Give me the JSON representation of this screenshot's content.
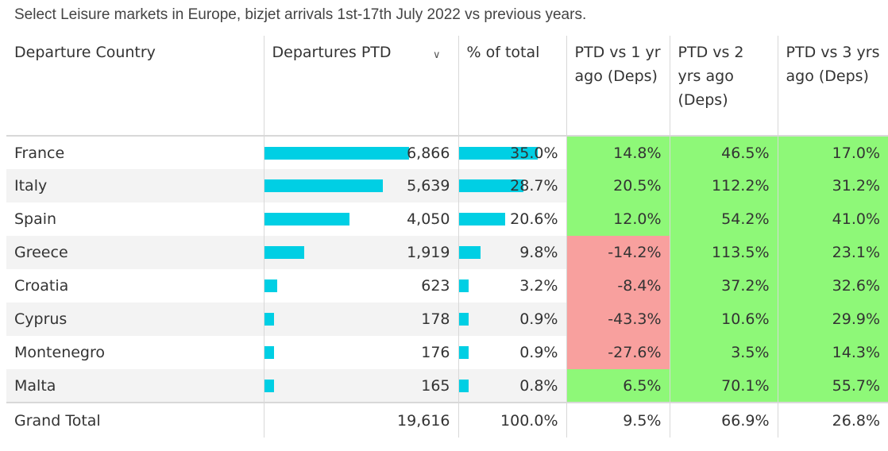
{
  "caption": "Select Leisure markets in Europe, bizjet arrivals 1st-17th July 2022 vs previous years.",
  "headers": {
    "country": "Departure Country",
    "departures": "Departures PTD",
    "pct_total": "% of total",
    "vs1": "PTD vs 1 yr ago (Deps)",
    "vs2": "PTD vs 2 yrs ago (Deps)",
    "vs3": "PTD vs 3 yrs ago (Deps)"
  },
  "colors": {
    "bar": "#00cfe4",
    "positive": "#8ef878",
    "negative": "#f8a09e"
  },
  "chart_data": {
    "type": "table",
    "columns": [
      "Departure Country",
      "Departures PTD",
      "% of total",
      "PTD vs 1 yr ago (Deps)",
      "PTD vs 2 yrs ago (Deps)",
      "PTD vs 3 yrs ago (Deps)"
    ],
    "rows": [
      {
        "country": "France",
        "departures": "6,866",
        "pct": "35.0%",
        "vs1": "14.8%",
        "vs2": "46.5%",
        "vs3": "17.0%",
        "dep_value": 6866,
        "pct_value": 35.0,
        "vs1_value": 14.8
      },
      {
        "country": "Italy",
        "departures": "5,639",
        "pct": "28.7%",
        "vs1": "20.5%",
        "vs2": "112.2%",
        "vs3": "31.2%",
        "dep_value": 5639,
        "pct_value": 28.7,
        "vs1_value": 20.5
      },
      {
        "country": "Spain",
        "departures": "4,050",
        "pct": "20.6%",
        "vs1": "12.0%",
        "vs2": "54.2%",
        "vs3": "41.0%",
        "dep_value": 4050,
        "pct_value": 20.6,
        "vs1_value": 12.0
      },
      {
        "country": "Greece",
        "departures": "1,919",
        "pct": "9.8%",
        "vs1": "-14.2%",
        "vs2": "113.5%",
        "vs3": "23.1%",
        "dep_value": 1919,
        "pct_value": 9.8,
        "vs1_value": -14.2
      },
      {
        "country": "Croatia",
        "departures": "623",
        "pct": "3.2%",
        "vs1": "-8.4%",
        "vs2": "37.2%",
        "vs3": "32.6%",
        "dep_value": 623,
        "pct_value": 3.2,
        "vs1_value": -8.4
      },
      {
        "country": "Cyprus",
        "departures": "178",
        "pct": "0.9%",
        "vs1": "-43.3%",
        "vs2": "10.6%",
        "vs3": "29.9%",
        "dep_value": 178,
        "pct_value": 0.9,
        "vs1_value": -43.3
      },
      {
        "country": "Montenegro",
        "departures": "176",
        "pct": "0.9%",
        "vs1": "-27.6%",
        "vs2": "3.5%",
        "vs3": "14.3%",
        "dep_value": 176,
        "pct_value": 0.9,
        "vs1_value": -27.6
      },
      {
        "country": "Malta",
        "departures": "165",
        "pct": "0.8%",
        "vs1": "6.5%",
        "vs2": "70.1%",
        "vs3": "55.7%",
        "dep_value": 165,
        "pct_value": 0.8,
        "vs1_value": 6.5
      }
    ],
    "total": {
      "country": "Grand Total",
      "departures": "19,616",
      "pct": "100.0%",
      "vs1": "9.5%",
      "vs2": "66.9%",
      "vs3": "26.8%"
    }
  }
}
